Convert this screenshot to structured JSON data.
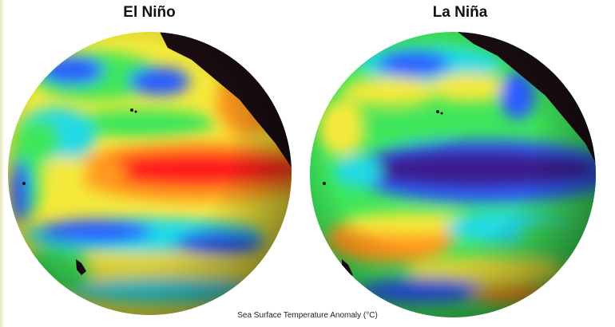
{
  "figure": {
    "left_title": "El Niño",
    "right_title": "La Niña",
    "caption": "Sea Surface Temperature Anomaly (°C)"
  },
  "colors": {
    "deep_blue": "#3b1f8f",
    "blue": "#2a5cff",
    "cyan": "#22d9e6",
    "green": "#3ee65a",
    "yellow": "#f4e93a",
    "orange": "#ff9a1a",
    "red": "#ff1a1a",
    "land": "#1a0d12"
  }
}
